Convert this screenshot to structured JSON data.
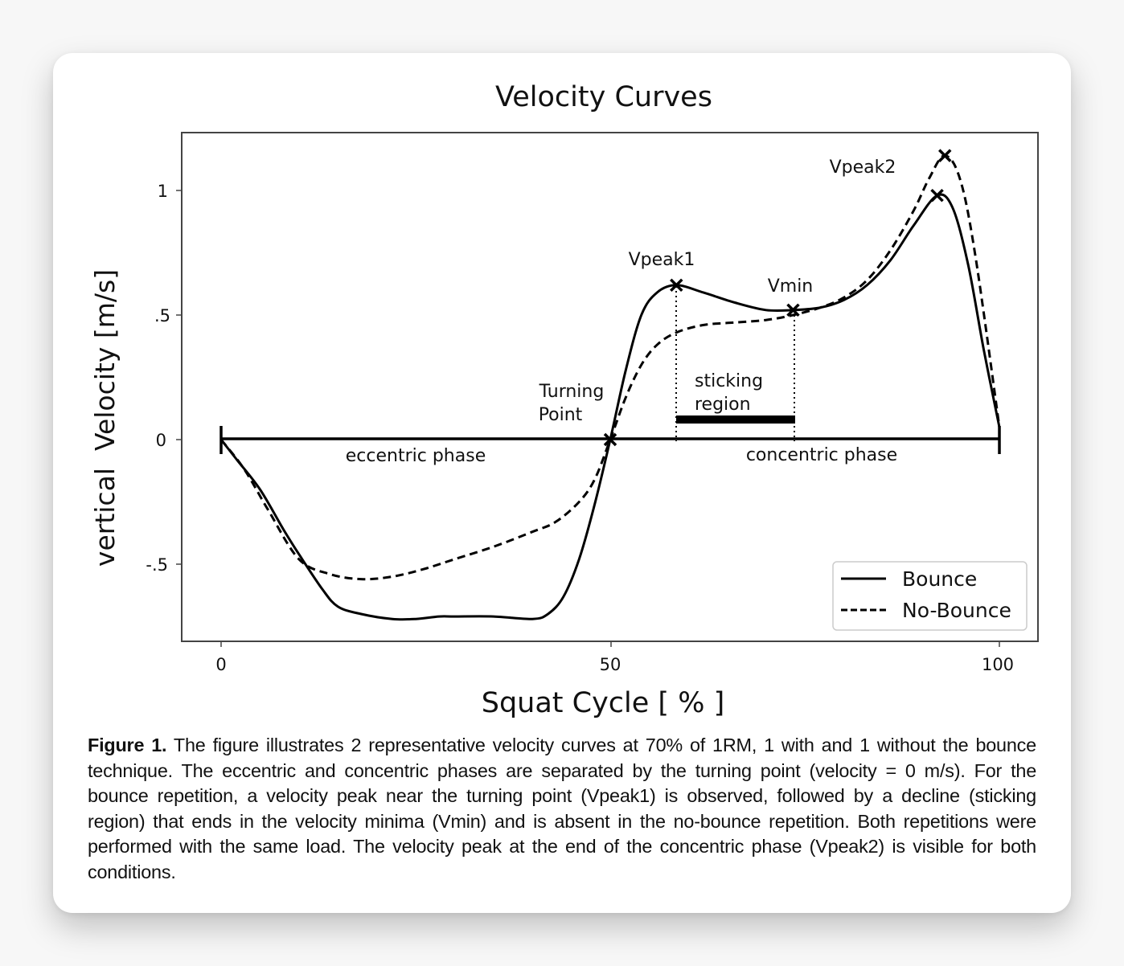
{
  "figure": {
    "title": "Velocity Curves",
    "caption_label": "Figure 1.",
    "caption_text": " The figure illustrates 2 representative velocity curves at 70% of 1RM, 1 with and 1 without the bounce technique. The eccentric and concentric phases are separated by the turning point (velocity = 0 m/s). For the bounce repetition, a velocity peak near the turning point (Vpeak1) is observed, followed by a decline (sticking region) that ends in the velocity minima (Vmin) and is absent in the no-bounce repetition. Both repetitions were performed with the same load. The velocity peak at the end of the concentric phase (Vpeak2) is visible for both conditions."
  },
  "annotations": {
    "vpeak1": "Vpeak1",
    "vmin": "Vmin",
    "vpeak2": "Vpeak2",
    "turning_point_line1": "Turning",
    "turning_point_line2": "Point",
    "sticking_line1": "sticking",
    "sticking_line2": "region",
    "eccentric": "eccentric phase",
    "concentric": "concentric phase"
  },
  "legend": {
    "bounce": "Bounce",
    "no_bounce": "No-Bounce"
  },
  "axes": {
    "xlabel": "Squat Cycle [ % ]",
    "ylabel": "vertical  Velocity [m/s]",
    "xticks": [
      "0",
      "50",
      "100"
    ],
    "yticks": [
      "1",
      ".5",
      "0",
      "-.5"
    ]
  },
  "chart_data": {
    "type": "line",
    "title": "Velocity Curves",
    "xlabel": "Squat Cycle [ % ]",
    "ylabel": "vertical Velocity [m/s]",
    "xlim": [
      -5,
      105
    ],
    "ylim": [
      -0.81,
      1.23
    ],
    "xticks": [
      0,
      50,
      100
    ],
    "yticks": [
      -0.5,
      0,
      0.5,
      1
    ],
    "grid": false,
    "legend_position": "lower right",
    "series": [
      {
        "name": "Bounce",
        "style": "solid",
        "x": [
          0,
          2,
          5,
          8,
          10,
          13,
          15,
          18,
          22,
          25,
          28,
          30,
          35,
          40,
          42,
          44,
          46,
          48,
          50,
          52,
          54,
          56,
          58.5,
          62,
          66,
          70,
          73.5,
          77,
          80,
          83,
          86,
          89,
          92,
          94,
          96,
          98,
          100
        ],
        "y": [
          0,
          -0.08,
          -0.2,
          -0.36,
          -0.46,
          -0.6,
          -0.67,
          -0.7,
          -0.72,
          -0.72,
          -0.71,
          -0.71,
          -0.71,
          -0.72,
          -0.7,
          -0.63,
          -0.48,
          -0.26,
          0,
          0.28,
          0.5,
          0.59,
          0.62,
          0.59,
          0.55,
          0.52,
          0.52,
          0.53,
          0.56,
          0.62,
          0.72,
          0.86,
          0.98,
          0.93,
          0.7,
          0.36,
          0.05
        ]
      },
      {
        "name": "No-Bounce",
        "style": "dashed",
        "x": [
          0,
          3,
          6,
          10,
          14,
          18,
          22,
          26,
          30,
          35,
          40,
          43,
          46,
          48,
          50,
          52,
          54,
          56,
          58.5,
          62,
          66,
          70,
          73.5,
          77,
          80,
          83,
          86,
          89,
          91,
          93,
          95,
          97,
          100
        ],
        "y": [
          0,
          -0.12,
          -0.28,
          -0.48,
          -0.54,
          -0.56,
          -0.55,
          -0.52,
          -0.48,
          -0.43,
          -0.37,
          -0.33,
          -0.25,
          -0.16,
          0,
          0.17,
          0.3,
          0.38,
          0.43,
          0.46,
          0.47,
          0.48,
          0.5,
          0.53,
          0.57,
          0.64,
          0.76,
          0.92,
          1.05,
          1.14,
          1.04,
          0.72,
          0.05
        ]
      }
    ],
    "markers": [
      {
        "label": "Turning Point",
        "x": 50,
        "y": 0
      },
      {
        "label": "Vpeak1",
        "x": 58.5,
        "y": 0.62
      },
      {
        "label": "Vmin",
        "x": 73.5,
        "y": 0.52
      },
      {
        "label": "Vpeak2 (Bounce)",
        "x": 92,
        "y": 0.98
      },
      {
        "label": "Vpeak2 (No-Bounce)",
        "x": 93,
        "y": 1.14
      }
    ],
    "regions": [
      {
        "label": "eccentric phase",
        "x_range": [
          0,
          50
        ]
      },
      {
        "label": "concentric phase",
        "x_range": [
          50,
          100
        ]
      },
      {
        "label": "sticking region",
        "x_range": [
          58.5,
          73.5
        ]
      }
    ]
  }
}
